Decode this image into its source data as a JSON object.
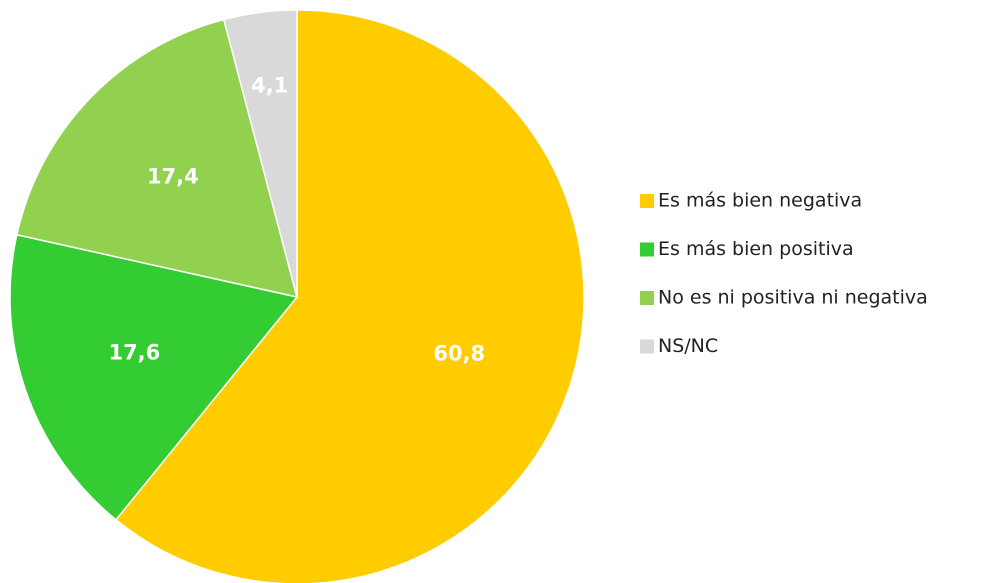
{
  "chart_data": {
    "type": "pie",
    "categories": [
      "Es más bien negativa",
      "Es más bien positiva",
      "No es ni positiva ni negativa",
      "NS/NC"
    ],
    "values": [
      60.8,
      17.6,
      17.4,
      4.1
    ],
    "value_labels": [
      "60,8",
      "17,6",
      "17,4",
      "4,1"
    ],
    "colors": [
      "#ffcc00",
      "#33cc33",
      "#92d050",
      "#d9d9d9"
    ],
    "legend": "right"
  }
}
